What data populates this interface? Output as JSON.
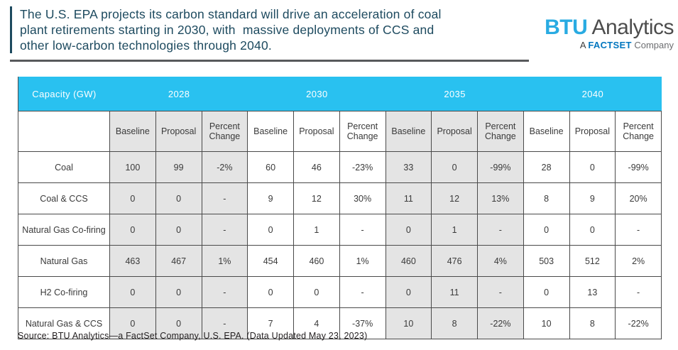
{
  "header": {
    "title": "The U.S. EPA projects its carbon standard will drive an acceleration of coal\nplant retirements starting in 2030, with  massive deployments of CCS and\nother low-carbon technologies through 2040.",
    "logo": {
      "brand_bold": "BTU",
      "brand_rest": "Analytics",
      "tagline_prefix": "A",
      "tagline_brand": "FACTSET",
      "tagline_suffix": "Company"
    }
  },
  "colors": {
    "accent_cyan": "#29c1f0",
    "logo_cyan": "#29abe2",
    "factset_blue": "#0076bf",
    "title_teal": "#1d4a5f",
    "shaded_cell_gray": "#e4e4e4",
    "border_gray": "#4a4a4a",
    "rule_gray": "#58595b"
  },
  "chart_data": {
    "type": "table",
    "title": "The U.S. EPA projects its carbon standard will drive an acceleration of coal plant retirements starting in 2030, with massive deployments of CCS and other low-carbon technologies through 2040.",
    "corner_label": "Capacity (GW)",
    "year_groups": [
      "2028",
      "2030",
      "2035",
      "2040"
    ],
    "sub_headers": [
      "Baseline",
      "Proposal",
      "Percent Change"
    ],
    "rows": [
      {
        "label": "Coal",
        "values": [
          "100",
          "99",
          "-2%",
          "60",
          "46",
          "-23%",
          "33",
          "0",
          "-99%",
          "28",
          "0",
          "-99%"
        ]
      },
      {
        "label": "Coal & CCS",
        "values": [
          "0",
          "0",
          "-",
          "9",
          "12",
          "30%",
          "11",
          "12",
          "13%",
          "8",
          "9",
          "20%"
        ]
      },
      {
        "label": "Natural Gas Co-firing",
        "values": [
          "0",
          "0",
          "-",
          "0",
          "1",
          "-",
          "0",
          "1",
          "-",
          "0",
          "0",
          "-"
        ]
      },
      {
        "label": "Natural Gas",
        "values": [
          "463",
          "467",
          "1%",
          "454",
          "460",
          "1%",
          "460",
          "476",
          "4%",
          "503",
          "512",
          "2%"
        ]
      },
      {
        "label": "H2 Co-firing",
        "values": [
          "0",
          "0",
          "-",
          "0",
          "0",
          "-",
          "0",
          "11",
          "-",
          "0",
          "13",
          "-"
        ]
      },
      {
        "label": "Natural Gas & CCS",
        "values": [
          "0",
          "0",
          "-",
          "7",
          "4",
          "-37%",
          "10",
          "8",
          "-22%",
          "10",
          "8",
          "-22%"
        ]
      }
    ]
  },
  "footer": {
    "source": "Source: BTU Analytics—a FactSet Company, U.S. EPA. (Data Updated May 23, 2023)"
  }
}
